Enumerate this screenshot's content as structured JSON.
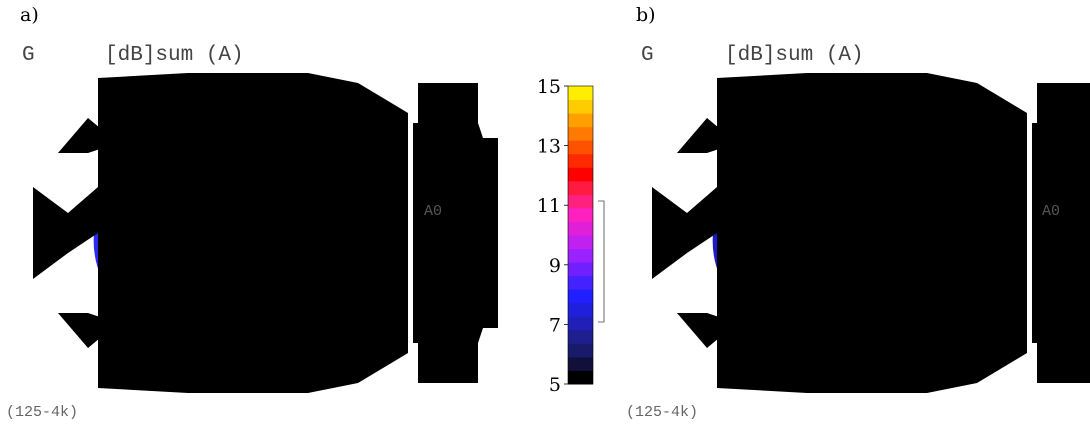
{
  "panels": [
    {
      "label": "a)",
      "node_label": "G",
      "quantity_title": "[dB]sum (A)",
      "band_label": "(125-4k)",
      "annotation": "A0"
    },
    {
      "label": "b)",
      "node_label": "G",
      "quantity_title": "[dB]sum (A)",
      "band_label": "(125-4k)",
      "annotation": "A0"
    }
  ],
  "colorbar": {
    "ticks": [
      "15",
      "13",
      "11",
      "9",
      "7",
      "5"
    ],
    "min": 5,
    "max": 15,
    "colors": [
      "#000000",
      "#10103a",
      "#1a1a6a",
      "#1e1e8f",
      "#2020b8",
      "#1f1fdc",
      "#2020ff",
      "#4422ff",
      "#7020ff",
      "#9a22ff",
      "#c020f0",
      "#e020d8",
      "#ff20c0",
      "#ff2080",
      "#ff1a40",
      "#ff0000",
      "#ff2a00",
      "#ff5200",
      "#ff7a00",
      "#ffa000",
      "#ffcc00",
      "#ffee00"
    ]
  }
}
